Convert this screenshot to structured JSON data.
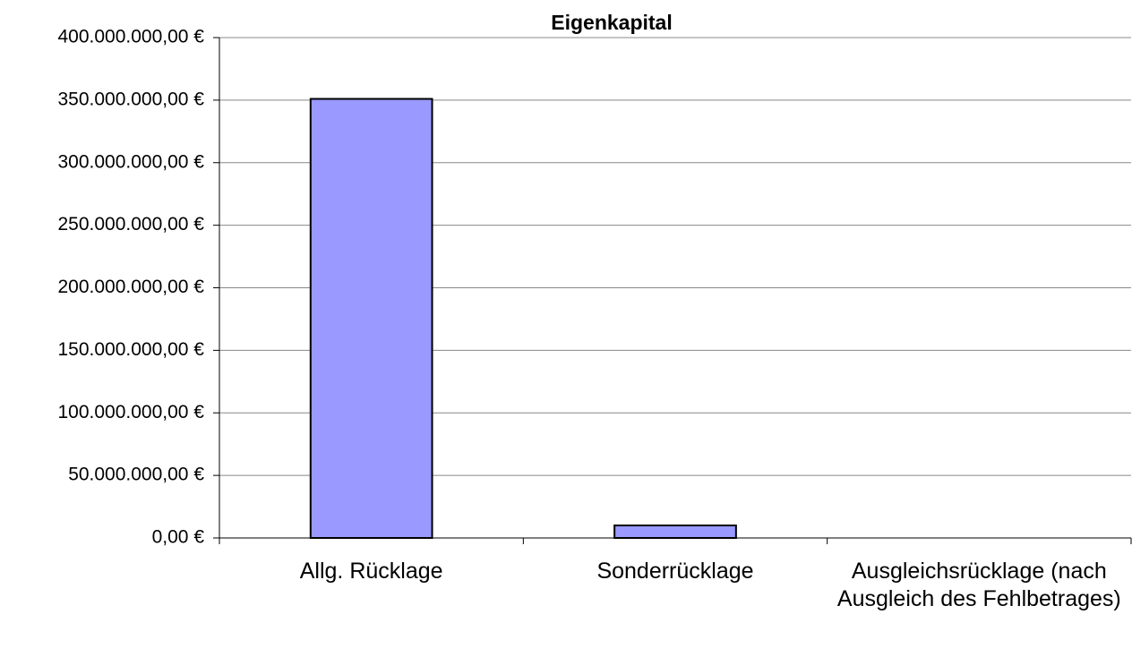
{
  "chart_data": {
    "type": "bar",
    "title": "Eigenkapital",
    "categories": [
      "Allg. Rücklage",
      "Sonderrücklage",
      "Ausgleichsrücklage (nach Ausgleich des Fehlbetrages)"
    ],
    "values": [
      351000000,
      10000000,
      0
    ],
    "color": "#9999ff",
    "ylim": [
      0,
      400000000
    ],
    "yticks": [
      {
        "value": 0,
        "label": "0,00 €"
      },
      {
        "value": 50000000,
        "label": "50.000.000,00 €"
      },
      {
        "value": 100000000,
        "label": "100.000.000,00 €"
      },
      {
        "value": 150000000,
        "label": "150.000.000,00 €"
      },
      {
        "value": 200000000,
        "label": "200.000.000,00 €"
      },
      {
        "value": 250000000,
        "label": "250.000.000,00 €"
      },
      {
        "value": 300000000,
        "label": "300.000.000,00 €"
      },
      {
        "value": 350000000,
        "label": "350.000.000,00 €"
      },
      {
        "value": 400000000,
        "label": "400.000.000,00 €"
      }
    ],
    "grid": true
  }
}
